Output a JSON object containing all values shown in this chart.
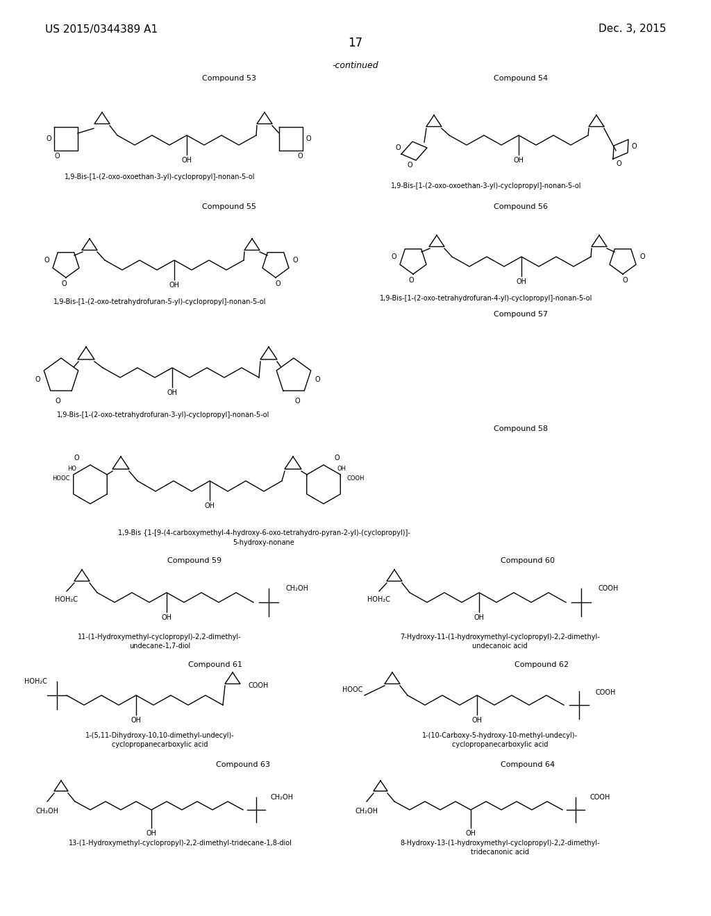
{
  "page_header_left": "US 2015/0344389 A1",
  "page_header_right": "Dec. 3, 2015",
  "page_number": "17",
  "continued": "-continued",
  "background_color": "#ffffff",
  "text_color": "#000000",
  "font_size_header": 11,
  "font_size_label": 8,
  "font_size_name": 7,
  "font_size_atom": 7
}
